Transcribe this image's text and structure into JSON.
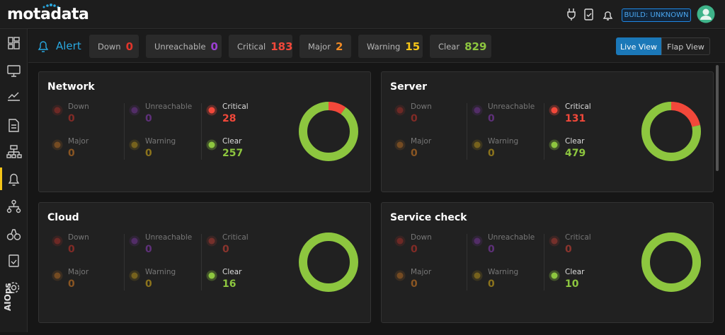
{
  "header": {
    "logo": "motadata",
    "build": "BUILD: UNKNOWN"
  },
  "sidebar": {
    "bottom_label": "AIOps"
  },
  "statuses": [
    {
      "label": "Down",
      "color": "#e0352b"
    },
    {
      "label": "Unreachable",
      "color": "#9b3fd1"
    },
    {
      "label": "Critical",
      "color": "#f2483a"
    },
    {
      "label": "Major",
      "color": "#f08a24"
    },
    {
      "label": "Warning",
      "color": "#f5c518"
    },
    {
      "label": "Clear",
      "color": "#8dc63f"
    }
  ],
  "alert_bar": {
    "title": "Alert",
    "counts": [
      0,
      0,
      183,
      2,
      15,
      829
    ],
    "views": [
      "Live View",
      "Flap View"
    ]
  },
  "panels": [
    {
      "title": "Network",
      "values": [
        0,
        0,
        28,
        0,
        0,
        257
      ]
    },
    {
      "title": "Server",
      "values": [
        0,
        0,
        131,
        0,
        0,
        479
      ]
    },
    {
      "title": "Cloud",
      "values": [
        0,
        0,
        0,
        0,
        0,
        16
      ]
    },
    {
      "title": "Service check",
      "values": [
        0,
        0,
        0,
        0,
        0,
        10
      ]
    }
  ]
}
